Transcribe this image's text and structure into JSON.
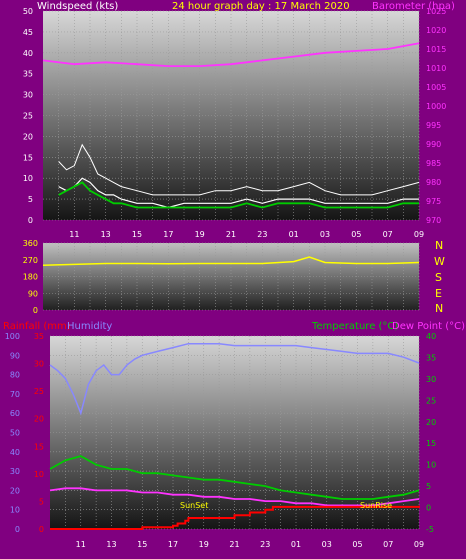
{
  "header": {
    "windspeed_label": "Windspeed (kts)",
    "title": "24 hour graph day : 17 March 2020",
    "barometer_label": "Barometer (hpa)"
  },
  "bottom_header": {
    "rainfall_label": "Rainfall (mm)",
    "humidity_label": "Humidity",
    "temperature_label": "Temperature (°C)",
    "dewpoint_label": "Dew Point (°C)"
  },
  "compass": [
    "N",
    "W",
    "S",
    "E",
    "N"
  ],
  "x_ticks": [
    "11",
    "13",
    "15",
    "17",
    "19",
    "21",
    "23",
    "01",
    "03",
    "05",
    "07",
    "09"
  ],
  "annotations": {
    "sunset": "SunSet",
    "sunrise": "SunRise"
  },
  "colors": {
    "background": "#800080",
    "windspeed": "#ffffff",
    "gust": "#ffffff",
    "avg_wind": "#00cc00",
    "barometer": "#ff33ff",
    "direction": "#ffff00",
    "humidity": "#8888ff",
    "temperature": "#00cc00",
    "dewpoint": "#ff33ff",
    "rain": "#ff0000",
    "left_axis_text": "#ffffff",
    "baro_axis": "#ff33ff",
    "temp_axis": "#00cc00",
    "rain_axis": "#ff0000",
    "humidity_axis": "#8888ff",
    "direction_axis": "#ffff00"
  },
  "chart_data": [
    {
      "type": "line",
      "title": "24 hour graph day : 17 March 2020",
      "xlabel": "",
      "x_ticks": [
        "11",
        "13",
        "15",
        "17",
        "19",
        "21",
        "23",
        "01",
        "03",
        "05",
        "07",
        "09"
      ],
      "y_left_label": "Windspeed (kts)",
      "y_left_ticks": [
        0,
        5,
        10,
        15,
        20,
        25,
        30,
        35,
        40,
        45,
        50
      ],
      "ylim_left": [
        0,
        50
      ],
      "y_right_label": "Barometer (hpa)",
      "y_right_ticks": [
        970,
        975,
        980,
        985,
        990,
        995,
        1000,
        1005,
        1010,
        1015,
        1020,
        1025
      ],
      "ylim_right": [
        970,
        1025
      ],
      "series": [
        {
          "name": "Gust",
          "axis": "left",
          "x": [
            10,
            10.5,
            11,
            11.5,
            12,
            12.5,
            13,
            13.5,
            14,
            15,
            16,
            17,
            18,
            19,
            20,
            21,
            22,
            23,
            24,
            25,
            26,
            27,
            28,
            29,
            30,
            31,
            32,
            33
          ],
          "values": [
            14,
            12,
            13,
            18,
            15,
            11,
            10,
            9,
            8,
            7,
            6,
            6,
            6,
            6,
            7,
            7,
            8,
            7,
            7,
            8,
            9,
            7,
            6,
            6,
            6,
            7,
            8,
            9
          ]
        },
        {
          "name": "Windspeed",
          "axis": "left",
          "x": [
            10,
            10.5,
            11,
            11.5,
            12,
            12.5,
            13,
            13.5,
            14,
            15,
            16,
            17,
            18,
            19,
            20,
            21,
            22,
            23,
            24,
            25,
            26,
            27,
            28,
            29,
            30,
            31,
            32,
            33
          ],
          "values": [
            8,
            7,
            8,
            10,
            9,
            7,
            6,
            6,
            5,
            4,
            4,
            3,
            4,
            4,
            4,
            4,
            5,
            4,
            5,
            5,
            5,
            4,
            4,
            4,
            4,
            4,
            5,
            5
          ]
        },
        {
          "name": "Average",
          "axis": "left",
          "x": [
            10,
            10.5,
            11,
            11.5,
            12,
            12.5,
            13,
            13.5,
            14,
            15,
            16,
            17,
            18,
            19,
            20,
            21,
            22,
            23,
            24,
            25,
            26,
            27,
            28,
            29,
            30,
            31,
            32,
            33
          ],
          "values": [
            6,
            7,
            8,
            9,
            7,
            6,
            5,
            4,
            4,
            3,
            3,
            3,
            3,
            3,
            3,
            3,
            4,
            3,
            4,
            4,
            4,
            3,
            3,
            3,
            3,
            3,
            4,
            4
          ]
        },
        {
          "name": "Barometer",
          "axis": "right",
          "x": [
            9,
            11,
            13,
            15,
            17,
            19,
            21,
            23,
            25,
            27,
            29,
            31,
            33
          ],
          "values": [
            1012,
            1011,
            1011.5,
            1011,
            1010.5,
            1010.5,
            1011,
            1012,
            1013,
            1014,
            1014.5,
            1015,
            1016.5
          ]
        }
      ]
    },
    {
      "type": "line",
      "title": "",
      "x_ticks": [
        "11",
        "13",
        "15",
        "17",
        "19",
        "21",
        "23",
        "01",
        "03",
        "05",
        "07",
        "09"
      ],
      "y_ticks": [
        0,
        90,
        180,
        270,
        360
      ],
      "ylim": [
        0,
        360
      ],
      "y_right_ticks": [
        "N",
        "W",
        "S",
        "E",
        "N"
      ],
      "series": [
        {
          "name": "Direction",
          "x": [
            9,
            11,
            13,
            15,
            17,
            19,
            21,
            23,
            25,
            26,
            27,
            29,
            31,
            33
          ],
          "values": [
            240,
            245,
            250,
            250,
            248,
            250,
            250,
            250,
            260,
            285,
            255,
            250,
            250,
            255
          ]
        }
      ]
    },
    {
      "type": "line",
      "title": "",
      "x_ticks": [
        "11",
        "13",
        "15",
        "17",
        "19",
        "21",
        "23",
        "01",
        "03",
        "05",
        "07",
        "09"
      ],
      "y_left_label": "Humidity",
      "y_left_ticks": [
        0,
        10,
        20,
        30,
        40,
        50,
        60,
        70,
        80,
        90,
        100
      ],
      "ylim_left": [
        0,
        100
      ],
      "y_rain_label": "Rainfall (mm)",
      "y_rain_ticks": [
        0,
        5,
        10,
        15,
        20,
        25,
        30,
        35
      ],
      "ylim_rain": [
        0,
        35
      ],
      "y_right_label": "Temperature (°C)",
      "y_right_ticks": [
        -5,
        0,
        5,
        10,
        15,
        20,
        25,
        30,
        35,
        40
      ],
      "ylim_right": [
        -5,
        40
      ],
      "series": [
        {
          "name": "Humidity",
          "axis": "left",
          "x": [
            9,
            9.5,
            10,
            10.5,
            11,
            11.5,
            12,
            12.5,
            13,
            13.5,
            14,
            14.5,
            15,
            16,
            17,
            18,
            19,
            20,
            21,
            22,
            23,
            24,
            25,
            26,
            27,
            28,
            29,
            30,
            31,
            32,
            33
          ],
          "values": [
            85,
            82,
            78,
            70,
            60,
            75,
            82,
            85,
            80,
            80,
            85,
            88,
            90,
            92,
            94,
            96,
            96,
            96,
            95,
            95,
            95,
            95,
            95,
            94,
            93,
            92,
            91,
            91,
            91,
            89,
            86
          ]
        },
        {
          "name": "Temperature (°C)",
          "axis": "right",
          "x": [
            9,
            10,
            11,
            12,
            13,
            14,
            15,
            16,
            17,
            18,
            19,
            20,
            21,
            22,
            23,
            24,
            25,
            26,
            27,
            28,
            29,
            30,
            31,
            32,
            33
          ],
          "values": [
            9,
            11,
            12,
            10,
            9,
            9,
            8,
            8,
            7.5,
            7,
            6.5,
            6.5,
            6,
            5.5,
            5,
            4,
            3.5,
            3,
            2.5,
            2,
            2,
            2,
            2.5,
            3,
            4
          ]
        },
        {
          "name": "Dew Point (°C)",
          "axis": "right",
          "x": [
            9,
            10,
            11,
            12,
            13,
            14,
            15,
            16,
            17,
            18,
            19,
            20,
            21,
            22,
            23,
            24,
            25,
            26,
            27,
            28,
            29,
            30,
            31,
            32,
            33
          ],
          "values": [
            4,
            4.5,
            4.5,
            4,
            4,
            4,
            3.5,
            3.5,
            3,
            3,
            2.5,
            2.5,
            2,
            2,
            1.5,
            1.5,
            1,
            1,
            0.5,
            0.5,
            0.5,
            0.5,
            1,
            1.5,
            2
          ]
        },
        {
          "name": "Rainfall (mm)",
          "axis": "rain",
          "x": [
            9,
            11,
            13,
            15,
            16.5,
            17,
            17.3,
            17.8,
            18,
            19,
            20,
            21,
            22,
            23,
            23.5,
            24,
            25,
            26,
            27,
            28,
            29,
            30,
            31,
            32,
            33
          ],
          "values": [
            0,
            0,
            0,
            0.3,
            0.3,
            0.6,
            1,
            1.5,
            2,
            2,
            2,
            2.5,
            3,
            3.5,
            4,
            4,
            4,
            4,
            4,
            4,
            4,
            4,
            4,
            4,
            4.2
          ]
        }
      ]
    }
  ]
}
